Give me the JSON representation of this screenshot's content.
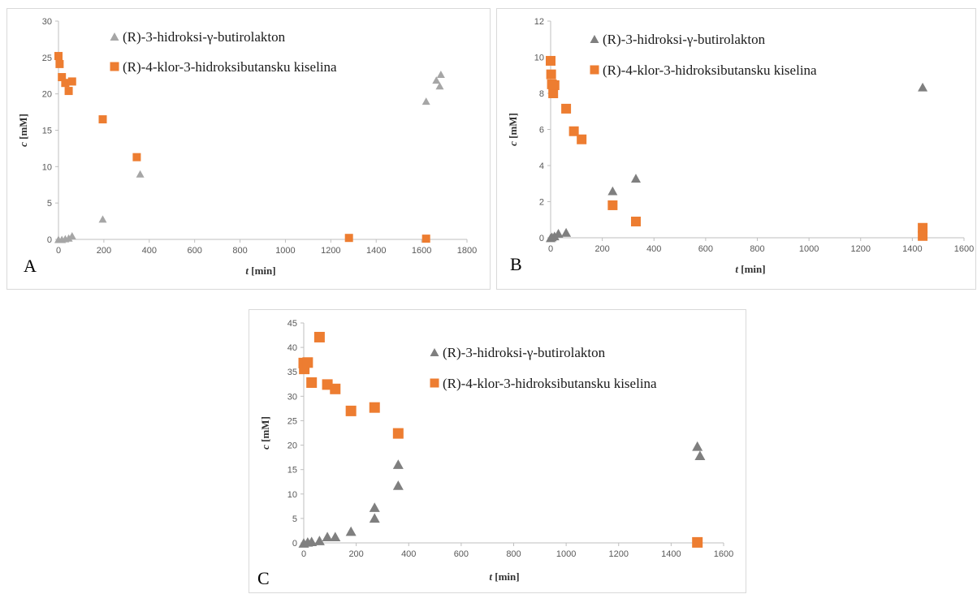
{
  "colors": {
    "triangle_A": "#a6a6a6",
    "triangle_BC": "#7f7f7f",
    "square": "#ed7d31",
    "axis": "#bfbfbf"
  },
  "chart_data": [
    {
      "type": "scatter",
      "panel_label": "A",
      "xlabel_italic": "t",
      "xlabel_unit": "[min]",
      "ylabel_italic": "c",
      "ylabel_unit": "[mM]",
      "xlim": [
        0,
        1800
      ],
      "ylim": [
        0,
        30
      ],
      "xticks": [
        "0",
        "200",
        "400",
        "600",
        "800",
        "1000",
        "1200",
        "1400",
        "1600",
        "1800"
      ],
      "yticks": [
        "0",
        "5",
        "10",
        "15",
        "20",
        "25",
        "30"
      ],
      "legend_position": "top-center",
      "series": [
        {
          "name": "(R)-3-hidroksi-γ-butirolakton",
          "marker": "triangle",
          "points": [
            [
              0,
              0
            ],
            [
              15,
              0
            ],
            [
              30,
              0.1
            ],
            [
              45,
              0.2
            ],
            [
              60,
              0.5
            ],
            [
              195,
              2.8
            ],
            [
              360,
              9.0
            ],
            [
              1620,
              19.0
            ],
            [
              1665,
              21.9
            ],
            [
              1680,
              21.1
            ],
            [
              1685,
              22.7
            ]
          ]
        },
        {
          "name": "(R)-4-klor-3-hidroksibutansku kiselina",
          "marker": "square",
          "points": [
            [
              0,
              25.2
            ],
            [
              5,
              24.1
            ],
            [
              15,
              22.3
            ],
            [
              30,
              21.5
            ],
            [
              45,
              20.4
            ],
            [
              60,
              21.7
            ],
            [
              195,
              16.5
            ],
            [
              345,
              11.3
            ],
            [
              1280,
              0.2
            ],
            [
              1620,
              0.1
            ]
          ]
        }
      ]
    },
    {
      "type": "scatter",
      "panel_label": "B",
      "xlabel_italic": "t",
      "xlabel_unit": "[min]",
      "ylabel_italic": "c",
      "ylabel_unit": "[mM]",
      "xlim": [
        0,
        1600
      ],
      "ylim": [
        0,
        12
      ],
      "xticks": [
        "0",
        "200",
        "400",
        "600",
        "800",
        "1000",
        "1200",
        "1400",
        "1600"
      ],
      "yticks": [
        "0",
        "2",
        "4",
        "6",
        "8",
        "10",
        "12"
      ],
      "legend_position": "top-center",
      "series": [
        {
          "name": "(R)-3-hidroksi-γ-butirolakton",
          "marker": "triangle",
          "points": [
            [
              0,
              0
            ],
            [
              5,
              0.05
            ],
            [
              15,
              0.1
            ],
            [
              30,
              0.25
            ],
            [
              60,
              0.3
            ],
            [
              240,
              2.6
            ],
            [
              330,
              3.3
            ],
            [
              1440,
              8.35
            ]
          ]
        },
        {
          "name": "(R)-4-klor-3-hidroksibutansku kiselina",
          "marker": "square",
          "points": [
            [
              0,
              9.8
            ],
            [
              2,
              9.05
            ],
            [
              5,
              8.5
            ],
            [
              10,
              8.0
            ],
            [
              15,
              8.45
            ],
            [
              60,
              7.15
            ],
            [
              90,
              5.9
            ],
            [
              120,
              5.45
            ],
            [
              240,
              1.8
            ],
            [
              330,
              0.9
            ],
            [
              1440,
              0.55
            ],
            [
              1440,
              0.1
            ]
          ]
        }
      ]
    },
    {
      "type": "scatter",
      "panel_label": "C",
      "xlabel_italic": "t",
      "xlabel_unit": "[min]",
      "ylabel_italic": "c",
      "ylabel_unit": "[mM]",
      "xlim": [
        0,
        1600
      ],
      "ylim": [
        0,
        45
      ],
      "xticks": [
        "0",
        "200",
        "400",
        "600",
        "800",
        "1000",
        "1200",
        "1400",
        "1600"
      ],
      "yticks": [
        "0",
        "5",
        "10",
        "15",
        "20",
        "25",
        "30",
        "35",
        "40",
        "45"
      ],
      "legend_position": "top-right",
      "series": [
        {
          "name": "(R)-3-hidroksi-γ-butirolakton",
          "marker": "triangle",
          "points": [
            [
              0,
              0
            ],
            [
              15,
              0.2
            ],
            [
              30,
              0.3
            ],
            [
              60,
              0.5
            ],
            [
              90,
              1.3
            ],
            [
              120,
              1.3
            ],
            [
              180,
              2.4
            ],
            [
              270,
              7.3
            ],
            [
              270,
              5.1
            ],
            [
              360,
              16.1
            ],
            [
              360,
              11.8
            ],
            [
              1500,
              19.8
            ],
            [
              1510,
              17.9
            ]
          ]
        },
        {
          "name": "(R)-4-klor-3-hidroksibutansku kiselina",
          "marker": "square",
          "points": [
            [
              0,
              36.8
            ],
            [
              2,
              35.6
            ],
            [
              15,
              36.9
            ],
            [
              30,
              32.8
            ],
            [
              60,
              42.1
            ],
            [
              90,
              32.4
            ],
            [
              120,
              31.5
            ],
            [
              180,
              27.0
            ],
            [
              270,
              27.7
            ],
            [
              360,
              22.4
            ],
            [
              1500,
              0.1
            ]
          ]
        }
      ]
    }
  ]
}
